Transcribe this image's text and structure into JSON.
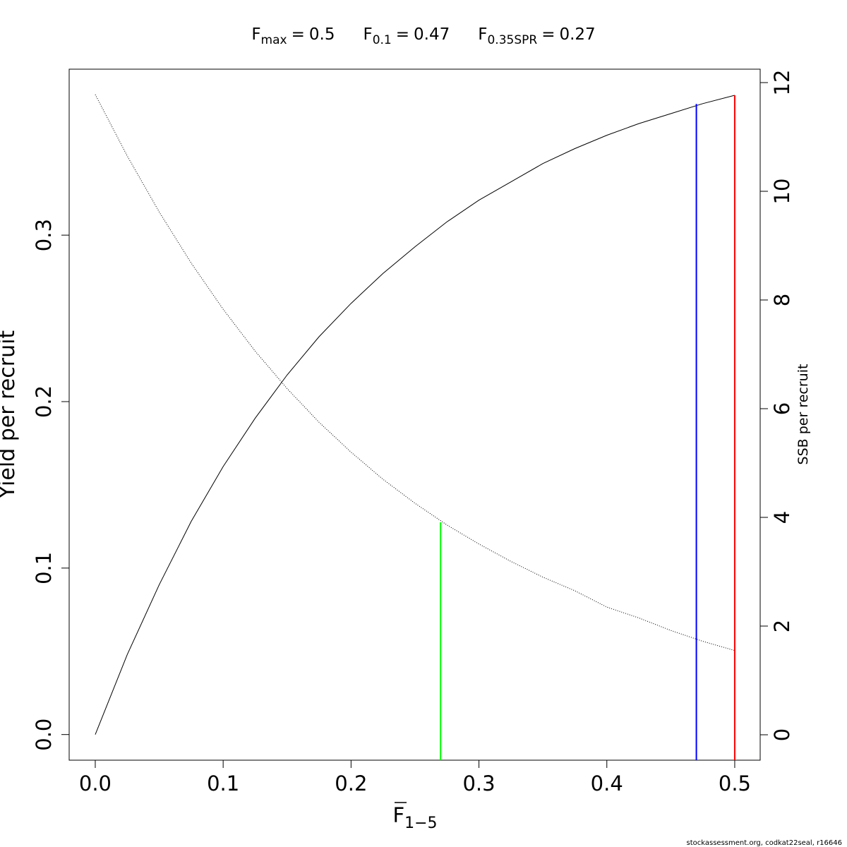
{
  "chart_data": {
    "type": "line",
    "title_separator": "=",
    "reference_points": [
      {
        "symbol": "F",
        "subscript": "max",
        "value": 0.5,
        "color": "#ff0000",
        "top": 0.384,
        "top_axis": "y"
      },
      {
        "symbol": "F",
        "subscript": "0.1",
        "value": 0.47,
        "color": "#0000ff",
        "top": 0.3788,
        "top_axis": "y"
      },
      {
        "symbol": "F",
        "subscript": "0.35SPR",
        "value": 0.27,
        "color": "#00ff00",
        "top": 3.91,
        "top_axis": "y2"
      }
    ],
    "xlabel": "F",
    "xlabel_subscript": "1−5",
    "ylabel": "Yield per recruit",
    "y2label": "SSB per recruit",
    "footer": "stockassessment.org, codkat22seal, r16646",
    "x": [
      0,
      0.025,
      0.05,
      0.075,
      0.1,
      0.125,
      0.15,
      0.175,
      0.2,
      0.225,
      0.25,
      0.275,
      0.3,
      0.325,
      0.35,
      0.375,
      0.4,
      0.425,
      0.45,
      0.475,
      0.5
    ],
    "series": [
      {
        "color": "#000000",
        "line_style": "solid",
        "axis": "y",
        "values": [
          0,
          0.048,
          0.09,
          0.128,
          0.161,
          0.19,
          0.216,
          0.239,
          0.259,
          0.277,
          0.293,
          0.308,
          0.321,
          0.332,
          0.343,
          0.352,
          0.36,
          0.367,
          0.373,
          0.379,
          0.384
        ]
      },
      {
        "color": "#000000",
        "line_style": "dotted",
        "axis": "y2",
        "values": [
          11.78,
          10.65,
          9.62,
          8.68,
          7.83,
          7.06,
          6.37,
          5.75,
          5.2,
          4.7,
          4.26,
          3.86,
          3.51,
          3.19,
          2.9,
          2.65,
          2.35,
          2.15,
          1.92,
          1.72,
          1.55
        ]
      }
    ],
    "xlim": [
      -0.0204,
      0.5199
    ],
    "ylim": [
      -0.0154,
      0.3997
    ],
    "y2lim": [
      -0.4675,
      12.247
    ],
    "xticks": [
      {
        "value": 0,
        "label": "0.0"
      },
      0.1,
      0.2,
      0.3,
      0.4,
      0.5
    ],
    "yticks": [
      {
        "value": 0,
        "label": "0.0"
      },
      0.1,
      0.2,
      0.3
    ],
    "y2ticks": [
      0,
      2,
      4,
      6,
      8,
      10,
      12
    ]
  }
}
